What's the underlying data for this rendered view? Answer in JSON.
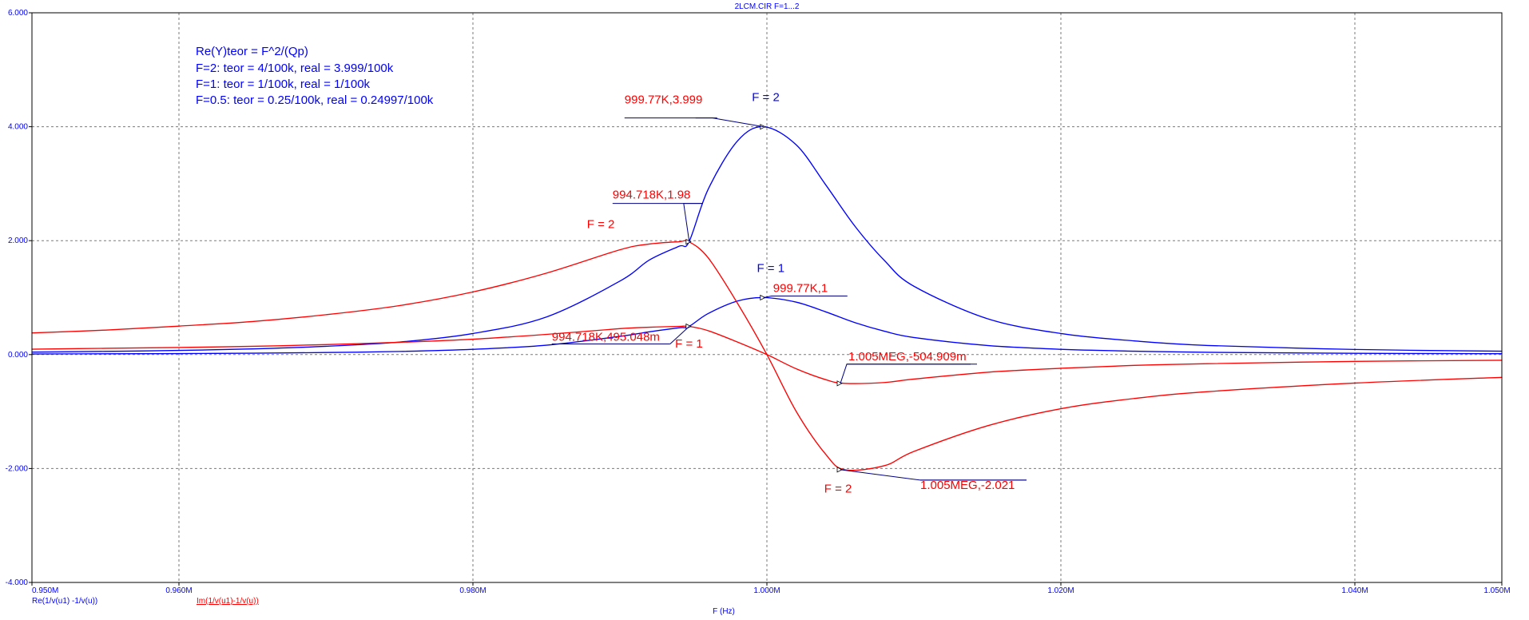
{
  "chart_data": {
    "type": "line",
    "title": "2LCM.CIR F=1...2",
    "xlabel": "F (Hz)",
    "ylabel": "",
    "xlim": [
      0.95,
      1.05
    ],
    "ylim": [
      -4.0,
      6.0
    ],
    "grid": true,
    "x_ticks": [
      {
        "value": 0.95,
        "label": "0.950M"
      },
      {
        "value": 0.96,
        "label": "0.960M"
      },
      {
        "value": 0.98,
        "label": "0.980M"
      },
      {
        "value": 1.0,
        "label": "1.000M"
      },
      {
        "value": 1.02,
        "label": "1.020M"
      },
      {
        "value": 1.04,
        "label": "1.040M"
      },
      {
        "value": 1.05,
        "label": "1.050M"
      }
    ],
    "y_ticks": [
      {
        "value": 6.0,
        "label": "6.000"
      },
      {
        "value": 4.0,
        "label": "4.000"
      },
      {
        "value": 2.0,
        "label": "2.000"
      },
      {
        "value": 0.0,
        "label": "0.000"
      },
      {
        "value": -2.0,
        "label": "-2.000"
      },
      {
        "value": -4.0,
        "label": "-4.000"
      }
    ],
    "legend": [
      {
        "label": "Re(1/v(u1) -1/v(u))",
        "color": "#0000ff"
      },
      {
        "label": "Im(1/v(u1)-1/v(u))",
        "color": "#ff0000"
      }
    ],
    "series": [
      {
        "name": "Re(1/v(u1) -1/v(u))",
        "color": "#0000ff",
        "x": [
          0.95,
          0.955,
          0.96,
          0.965,
          0.97,
          0.975,
          0.98,
          0.985,
          0.99,
          0.992,
          0.994,
          0.9947,
          0.996,
          0.998,
          0.9998,
          1.002,
          1.004,
          1.006,
          1.008,
          1.01,
          1.015,
          1.02,
          1.025,
          1.03,
          1.04,
          1.05
        ],
        "y": [
          0.043,
          0.056,
          0.073,
          0.1,
          0.145,
          0.22,
          0.37,
          0.66,
          1.29,
          1.66,
          1.9,
          1.98,
          2.9,
          3.75,
          3.999,
          3.68,
          2.98,
          2.25,
          1.65,
          1.2,
          0.63,
          0.37,
          0.24,
          0.16,
          0.09,
          0.06
        ]
      },
      {
        "name": "Re(1/v(u1) -1/v(u))",
        "color": "#0000ff",
        "x": [
          0.95,
          0.955,
          0.96,
          0.965,
          0.97,
          0.975,
          0.98,
          0.985,
          0.99,
          0.992,
          0.994,
          0.9947,
          0.996,
          0.998,
          0.9998,
          1.002,
          1.004,
          1.006,
          1.008,
          1.01,
          1.015,
          1.02,
          1.025,
          1.03,
          1.04,
          1.05
        ],
        "y": [
          0.011,
          0.014,
          0.018,
          0.025,
          0.036,
          0.055,
          0.093,
          0.165,
          0.32,
          0.4,
          0.47,
          0.495,
          0.72,
          0.94,
          1.0,
          0.92,
          0.75,
          0.56,
          0.41,
          0.3,
          0.16,
          0.093,
          0.06,
          0.04,
          0.023,
          0.015
        ]
      },
      {
        "name": "Im(1/v(u1)-1/v(u))",
        "color": "#ff0000",
        "x": [
          0.95,
          0.955,
          0.96,
          0.965,
          0.97,
          0.975,
          0.98,
          0.985,
          0.99,
          0.992,
          0.994,
          0.9947,
          0.996,
          0.998,
          1.0,
          1.002,
          1.004,
          1.0053,
          1.008,
          1.01,
          1.015,
          1.02,
          1.025,
          1.03,
          1.04,
          1.05
        ],
        "y": [
          0.38,
          0.43,
          0.5,
          0.58,
          0.7,
          0.86,
          1.1,
          1.43,
          1.84,
          1.94,
          1.98,
          1.98,
          1.7,
          0.9,
          0.0,
          -1.0,
          -1.75,
          -2.021,
          -1.95,
          -1.7,
          -1.25,
          -0.95,
          -0.77,
          -0.65,
          -0.5,
          -0.4
        ]
      },
      {
        "name": "Im(1/v(u1)-1/v(u))",
        "color": "#ff0000",
        "x": [
          0.95,
          0.955,
          0.96,
          0.965,
          0.97,
          0.975,
          0.98,
          0.985,
          0.99,
          0.992,
          0.994,
          0.9947,
          0.996,
          0.998,
          1.0,
          1.002,
          1.004,
          1.0053,
          1.008,
          1.01,
          1.015,
          1.02,
          1.025,
          1.03,
          1.04,
          1.05
        ],
        "y": [
          0.095,
          0.11,
          0.125,
          0.145,
          0.175,
          0.215,
          0.27,
          0.355,
          0.455,
          0.48,
          0.495,
          0.495,
          0.42,
          0.22,
          0.0,
          -0.25,
          -0.44,
          -0.5049,
          -0.49,
          -0.43,
          -0.31,
          -0.24,
          -0.19,
          -0.16,
          -0.12,
          -0.1
        ]
      }
    ],
    "annotations": [
      {
        "text": "F = 2",
        "x": 0.99992,
        "y": 4.45,
        "color": "#0000ff"
      },
      {
        "text": "F = 1",
        "x": 1.00026,
        "y": 1.45,
        "color": "#0000ff"
      },
      {
        "text": "F = 2",
        "x": 0.9887,
        "y": 2.22,
        "color": "#ff0000"
      },
      {
        "text": "F = 1",
        "x": 0.9947,
        "y": 0.12,
        "color": "#ff0000"
      },
      {
        "text": "F = 2",
        "x": 1.00484,
        "y": -2.42,
        "color": "#ff0000"
      }
    ],
    "markers": [
      {
        "label": "999.77K,3.999",
        "x": 0.99977,
        "y": 3.999,
        "color": "#ff0000"
      },
      {
        "label": "994.718K,1.98",
        "x": 0.994718,
        "y": 1.98,
        "color": "#ff0000"
      },
      {
        "label": "999.77K,1",
        "x": 0.99977,
        "y": 1.0,
        "color": "#ff0000"
      },
      {
        "label": "994.718K,495.048m",
        "x": 0.994718,
        "y": 0.495,
        "color": "#ff0000"
      },
      {
        "label": "1.005MEG,-504.909m",
        "x": 1.005,
        "y": -0.5049,
        "color": "#ff0000"
      },
      {
        "label": "1.005MEG,-2.021",
        "x": 1.005,
        "y": -2.021,
        "color": "#ff0000"
      }
    ],
    "notes": [
      "Re(Y)teor = F^2/(Qp)",
      "F=2: teor = 4/100k, real = 3.999/100k",
      "F=1: teor = 1/100k, real = 1/100k",
      "F=0.5: teor = 0.25/100k, real = 0.24997/100k"
    ],
    "colors": {
      "axis": "#000000",
      "grid": "#7a7a7a",
      "blue": "#0000ff",
      "red": "#ff0000"
    }
  }
}
